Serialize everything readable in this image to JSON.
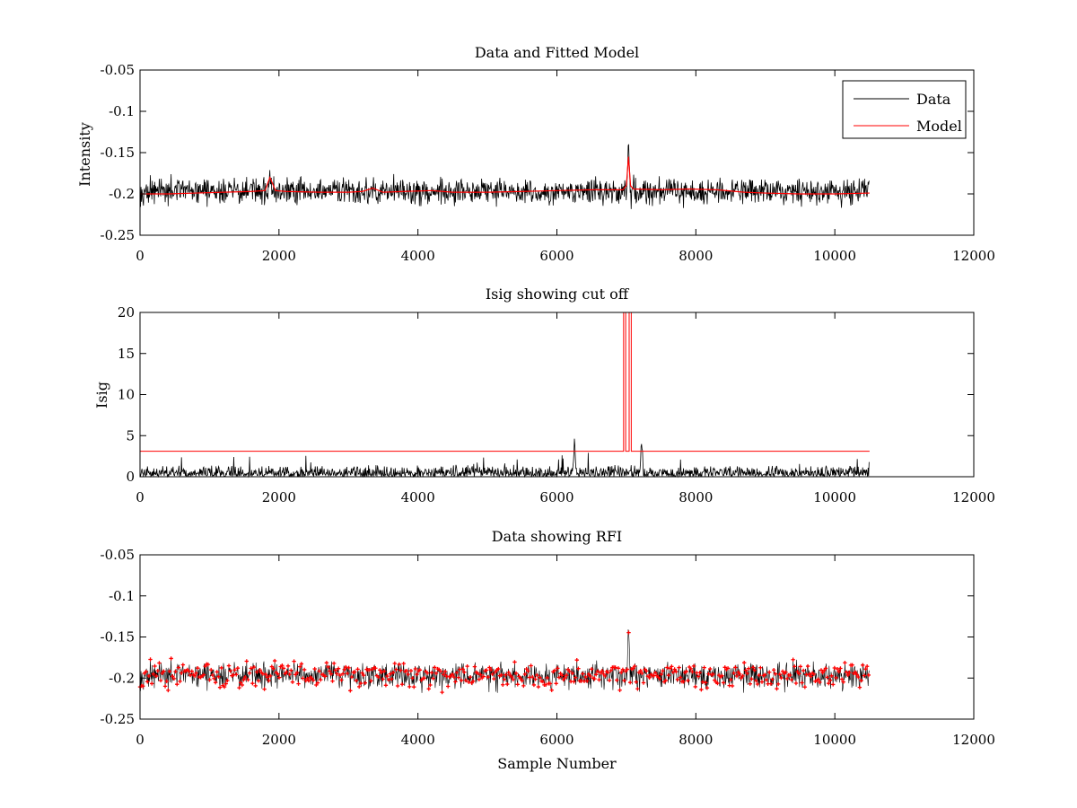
{
  "chart_data": [
    {
      "type": "line",
      "title": "Data and Fitted Model",
      "xlabel": "",
      "ylabel": "Intensity",
      "xlim": [
        0,
        12000
      ],
      "ylim": [
        -0.25,
        -0.05
      ],
      "y_reversed": true,
      "xticks": [
        0,
        2000,
        4000,
        6000,
        8000,
        10000,
        12000
      ],
      "yticks": [
        -0.25,
        -0.2,
        -0.15,
        -0.1,
        -0.05
      ],
      "xtick_labels": [
        "0",
        "2000",
        "4000",
        "6000",
        "8000",
        "10000",
        "12000"
      ],
      "ytick_labels": [
        "-0.25",
        "-0.2",
        "-0.15",
        "-0.1",
        "-0.05"
      ],
      "grid": false,
      "legend": {
        "placement": "top-right",
        "entries": [
          "Data",
          "Model"
        ]
      },
      "series": [
        {
          "name": "Data",
          "color": "#000000",
          "style": "noisy-line",
          "x_range": [
            0,
            10500
          ],
          "baseline": -0.197,
          "noise_amplitude": 0.012,
          "features": [
            {
              "x": 1870,
              "peak": -0.17
            },
            {
              "x": 7030,
              "peak": -0.133
            }
          ]
        },
        {
          "name": "Model",
          "color": "#ff0000",
          "points": [
            [
              0,
              -0.2
            ],
            [
              400,
              -0.2
            ],
            [
              800,
              -0.199
            ],
            [
              1200,
              -0.198
            ],
            [
              1600,
              -0.197
            ],
            [
              1800,
              -0.196
            ],
            [
              1870,
              -0.18
            ],
            [
              1950,
              -0.196
            ],
            [
              2100,
              -0.197
            ],
            [
              2600,
              -0.198
            ],
            [
              3000,
              -0.198
            ],
            [
              3200,
              -0.197
            ],
            [
              3350,
              -0.193
            ],
            [
              3500,
              -0.198
            ],
            [
              3800,
              -0.197
            ],
            [
              4200,
              -0.196
            ],
            [
              4500,
              -0.198
            ],
            [
              5000,
              -0.198
            ],
            [
              5500,
              -0.197
            ],
            [
              6000,
              -0.196
            ],
            [
              6500,
              -0.195
            ],
            [
              6950,
              -0.195
            ],
            [
              7000,
              -0.19
            ],
            [
              7030,
              -0.155
            ],
            [
              7060,
              -0.19
            ],
            [
              7100,
              -0.194
            ],
            [
              7500,
              -0.195
            ],
            [
              7900,
              -0.194
            ],
            [
              8300,
              -0.195
            ],
            [
              8700,
              -0.198
            ],
            [
              9000,
              -0.199
            ],
            [
              9500,
              -0.2
            ],
            [
              10000,
              -0.2
            ],
            [
              10500,
              -0.199
            ]
          ]
        }
      ]
    },
    {
      "type": "line",
      "title": "Isig showing cut off",
      "xlabel": "",
      "ylabel": "Isig",
      "xlim": [
        0,
        12000
      ],
      "ylim": [
        0,
        20
      ],
      "xticks": [
        0,
        2000,
        4000,
        6000,
        8000,
        10000,
        12000
      ],
      "yticks": [
        0,
        5,
        10,
        15,
        20
      ],
      "xtick_labels": [
        "0",
        "2000",
        "4000",
        "6000",
        "8000",
        "10000",
        "12000"
      ],
      "ytick_labels": [
        "0",
        "5",
        "10",
        "15",
        "20"
      ],
      "grid": false,
      "series": [
        {
          "color": "#000000",
          "style": "noisy-line",
          "x_range": [
            0,
            10500
          ],
          "baseline": 0.6,
          "noise_amplitude": 1.2,
          "features": [
            {
              "x": 6250,
              "peak": 4.6
            },
            {
              "x": 7220,
              "peak": 5.8
            }
          ]
        },
        {
          "color": "#ff0000",
          "points": [
            [
              0,
              3.1
            ],
            [
              6960,
              3.1
            ],
            [
              6960,
              20
            ],
            [
              6990,
              20
            ],
            [
              6990,
              3.1
            ],
            [
              7040,
              3.1
            ],
            [
              7040,
              20
            ],
            [
              7070,
              20
            ],
            [
              7070,
              3.1
            ],
            [
              10500,
              3.1
            ]
          ]
        }
      ]
    },
    {
      "type": "scatter",
      "title": "Data showing RFI",
      "xlabel": "Sample Number",
      "ylabel": "",
      "xlim": [
        0,
        12000
      ],
      "ylim": [
        -0.25,
        -0.05
      ],
      "y_reversed": true,
      "xticks": [
        0,
        2000,
        4000,
        6000,
        8000,
        10000,
        12000
      ],
      "yticks": [
        -0.25,
        -0.2,
        -0.15,
        -0.1,
        -0.05
      ],
      "xtick_labels": [
        "0",
        "2000",
        "4000",
        "6000",
        "8000",
        "10000",
        "12000"
      ],
      "ytick_labels": [
        "-0.25",
        "-0.2",
        "-0.15",
        "-0.1",
        "-0.05"
      ],
      "grid": false,
      "series": [
        {
          "color": "#ff0000",
          "style": "noisy-markers",
          "marker": "+",
          "x_range": [
            0,
            10500
          ],
          "baseline": -0.197,
          "noise_amplitude": 0.012,
          "features": [
            {
              "x": 7030,
              "peak": -0.133
            }
          ]
        }
      ]
    }
  ]
}
